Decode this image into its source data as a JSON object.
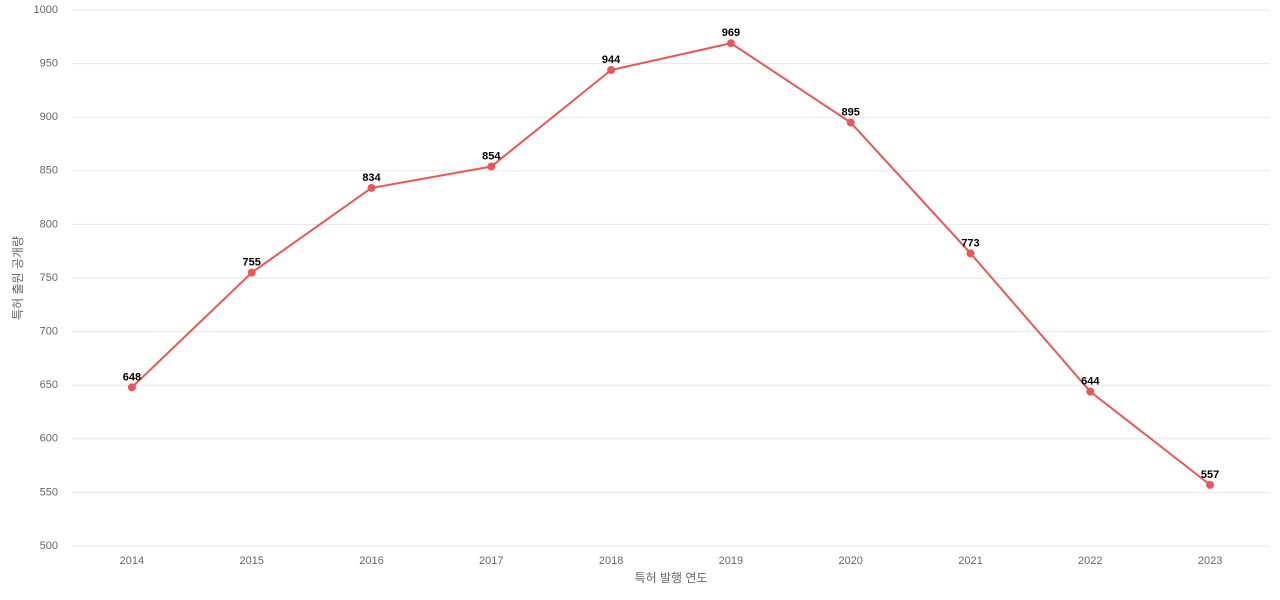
{
  "chart_data": {
    "type": "line",
    "x_label": "특허 발행 연도",
    "y_label": "특허 출원 공개량",
    "categories": [
      "2014",
      "2015",
      "2016",
      "2017",
      "2018",
      "2019",
      "2020",
      "2021",
      "2022",
      "2023"
    ],
    "series": [
      {
        "name": "특허 출원 공개량",
        "color": "#e8585a",
        "values": [
          648,
          755,
          834,
          854,
          944,
          969,
          895,
          773,
          644,
          557
        ]
      }
    ],
    "ylim": [
      500,
      1000
    ],
    "yticks": [
      500,
      550,
      600,
      650,
      700,
      750,
      800,
      850,
      900,
      950,
      1000
    ],
    "grid": true
  }
}
